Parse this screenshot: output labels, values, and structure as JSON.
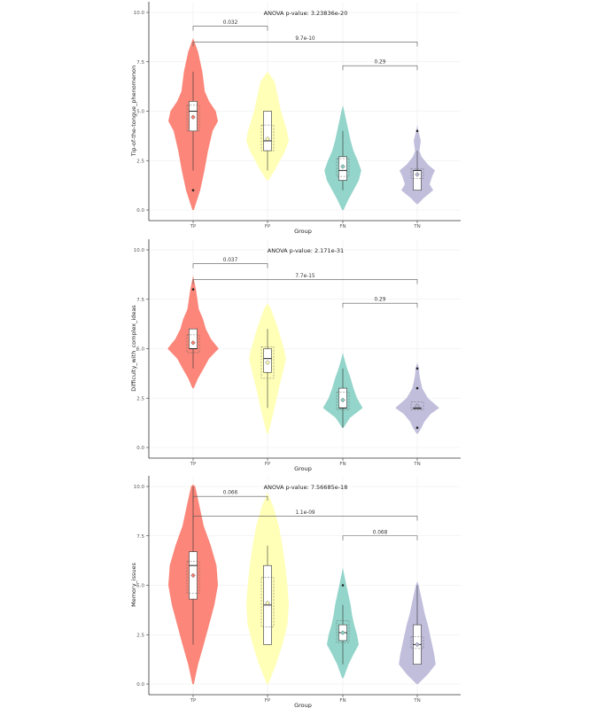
{
  "chart_data": [
    {
      "type": "violin",
      "title": "ANOVA p-value: 3.23836e-20",
      "xlabel": "Group",
      "ylabel": "Tip-of-the-tongue_phenomenon",
      "categories": [
        "TP",
        "FP",
        "FN",
        "TN"
      ],
      "yticks": [
        "0.0",
        "2.5",
        "5.0",
        "7.5",
        "10.0"
      ],
      "ylim": [
        0,
        10
      ],
      "grid": true,
      "groups": [
        {
          "name": "TP",
          "color": "#fb8072",
          "density": [
            [
              0,
              0.02
            ],
            [
              1,
              0.2
            ],
            [
              2,
              0.32
            ],
            [
              3,
              0.42
            ],
            [
              4,
              0.55
            ],
            [
              4.5,
              0.7
            ],
            [
              5,
              0.64
            ],
            [
              5.5,
              0.45
            ],
            [
              6,
              0.33
            ],
            [
              7,
              0.26
            ],
            [
              8,
              0.14
            ],
            [
              8.5,
              0.04
            ],
            [
              8.7,
              0
            ]
          ],
          "ymin": 0,
          "ymax": 8.7,
          "box": {
            "q1": 4,
            "median": 5,
            "q3": 5.5,
            "lo": 2,
            "hi": 7
          },
          "mean": 4.7,
          "ci": [
            4.0,
            5.3
          ],
          "outliers": [
            1
          ]
        },
        {
          "name": "FP",
          "color": "#ffffb3",
          "density": [
            [
              1.5,
              0.02
            ],
            [
              2,
              0.2
            ],
            [
              3,
              0.5
            ],
            [
              3.5,
              0.6
            ],
            [
              4,
              0.55
            ],
            [
              5,
              0.38
            ],
            [
              6,
              0.26
            ],
            [
              6.5,
              0.2
            ],
            [
              6.8,
              0.08
            ],
            [
              7,
              0
            ]
          ],
          "ymin": 1.5,
          "ymax": 7,
          "box": {
            "q1": 3,
            "median": 3.5,
            "q3": 5,
            "lo": 2,
            "hi": 5
          },
          "mean": 3.6,
          "ci": [
            3.0,
            4.3
          ],
          "outliers": []
        },
        {
          "name": "FN",
          "color": "#8dd3c7",
          "density": [
            [
              0,
              0.02
            ],
            [
              0.5,
              0.15
            ],
            [
              1,
              0.3
            ],
            [
              1.5,
              0.45
            ],
            [
              2,
              0.52
            ],
            [
              2.5,
              0.42
            ],
            [
              3,
              0.3
            ],
            [
              3.5,
              0.22
            ],
            [
              4,
              0.16
            ],
            [
              4.5,
              0.1
            ],
            [
              5,
              0.04
            ],
            [
              5.3,
              0
            ]
          ],
          "ymin": 0,
          "ymax": 5.3,
          "box": {
            "q1": 1.5,
            "median": 2,
            "q3": 2.7,
            "lo": 1,
            "hi": 4
          },
          "mean": 2.2,
          "ci": [
            1.7,
            2.6
          ],
          "outliers": []
        },
        {
          "name": "TN",
          "color": "#bebada",
          "density": [
            [
              0.3,
              0.02
            ],
            [
              0.6,
              0.18
            ],
            [
              1,
              0.45
            ],
            [
              1.3,
              0.35
            ],
            [
              1.7,
              0.42
            ],
            [
              2,
              0.5
            ],
            [
              2.3,
              0.3
            ],
            [
              2.7,
              0.12
            ],
            [
              3,
              0.06
            ],
            [
              3.5,
              0.1
            ],
            [
              4,
              0.03
            ],
            [
              4.3,
              0
            ]
          ],
          "ymin": 0.3,
          "ymax": 4.3,
          "box": {
            "q1": 1,
            "median": 2,
            "q3": 2,
            "lo": 1,
            "hi": 3
          },
          "mean": 1.8,
          "ci": [
            1.6,
            2.1
          ],
          "outliers": [
            4
          ]
        }
      ],
      "brackets": [
        {
          "from": "TP",
          "to": "FP",
          "y": 9.3,
          "label": "0.032"
        },
        {
          "from": "TP",
          "to": "TN",
          "y": 8.5,
          "label": "9.7e-10"
        },
        {
          "from": "FN",
          "to": "TN",
          "y": 7.3,
          "label": "0.29"
        }
      ]
    },
    {
      "type": "violin",
      "title": "ANOVA p-value: 2.171e-31",
      "xlabel": "Group",
      "ylabel": "Difficulty_with_complex_ideas",
      "categories": [
        "TP",
        "FP",
        "FN",
        "TN"
      ],
      "yticks": [
        "0.0",
        "2.5",
        "5.0",
        "7.5",
        "10.0"
      ],
      "ylim": [
        0,
        10
      ],
      "grid": true,
      "groups": [
        {
          "name": "TP",
          "color": "#fb8072",
          "density": [
            [
              3,
              0.02
            ],
            [
              3.5,
              0.14
            ],
            [
              4,
              0.3
            ],
            [
              4.5,
              0.45
            ],
            [
              5,
              0.72
            ],
            [
              5.5,
              0.5
            ],
            [
              6,
              0.36
            ],
            [
              6.5,
              0.28
            ],
            [
              7,
              0.16
            ],
            [
              7.5,
              0.12
            ],
            [
              8,
              0.08
            ],
            [
              8.5,
              0.02
            ],
            [
              8.7,
              0
            ]
          ],
          "ymin": 3,
          "ymax": 8.7,
          "box": {
            "q1": 5,
            "median": 5,
            "q3": 6,
            "lo": 4,
            "hi": 6
          },
          "mean": 5.3,
          "ci": [
            4.8,
            5.7
          ],
          "outliers": [
            8
          ]
        },
        {
          "name": "FP",
          "color": "#ffffb3",
          "density": [
            [
              0.7,
              0.02
            ],
            [
              1,
              0.06
            ],
            [
              2,
              0.2
            ],
            [
              3,
              0.32
            ],
            [
              4,
              0.46
            ],
            [
              4.5,
              0.52
            ],
            [
              5,
              0.46
            ],
            [
              6,
              0.3
            ],
            [
              7,
              0.1
            ],
            [
              7.3,
              0
            ]
          ],
          "ymin": 0.7,
          "ymax": 7.3,
          "box": {
            "q1": 3.8,
            "median": 4.5,
            "q3": 5,
            "lo": 2,
            "hi": 6
          },
          "mean": 4.3,
          "ci": [
            3.5,
            5.1
          ],
          "outliers": []
        },
        {
          "name": "FN",
          "color": "#8dd3c7",
          "density": [
            [
              1,
              0.02
            ],
            [
              1.5,
              0.2
            ],
            [
              2,
              0.56
            ],
            [
              2.5,
              0.4
            ],
            [
              3,
              0.3
            ],
            [
              3.5,
              0.22
            ],
            [
              4,
              0.12
            ],
            [
              4.5,
              0.04
            ],
            [
              4.8,
              0
            ]
          ],
          "ymin": 1,
          "ymax": 4.8,
          "box": {
            "q1": 2,
            "median": 2,
            "q3": 3,
            "lo": 1,
            "hi": 4
          },
          "mean": 2.4,
          "ci": [
            1.9,
            2.8
          ],
          "outliers": []
        },
        {
          "name": "TN",
          "color": "#bebada",
          "density": [
            [
              0.7,
              0.02
            ],
            [
              1,
              0.12
            ],
            [
              1.3,
              0.2
            ],
            [
              1.7,
              0.38
            ],
            [
              2,
              0.62
            ],
            [
              2.5,
              0.3
            ],
            [
              3,
              0.14
            ],
            [
              3.3,
              0.1
            ],
            [
              3.7,
              0.06
            ],
            [
              4,
              0.05
            ],
            [
              4.3,
              0
            ]
          ],
          "ymin": 0.7,
          "ymax": 4.3,
          "box": {
            "q1": 2,
            "median": 2,
            "q3": 2,
            "lo": 2,
            "hi": 2
          },
          "mean": 2.1,
          "ci": [
            1.9,
            2.3
          ],
          "outliers": [
            1,
            3,
            4
          ]
        }
      ],
      "brackets": [
        {
          "from": "TP",
          "to": "FP",
          "y": 9.3,
          "label": "0.037"
        },
        {
          "from": "TP",
          "to": "TN",
          "y": 8.5,
          "label": "7.7e-15"
        },
        {
          "from": "FN",
          "to": "TN",
          "y": 7.3,
          "label": "0.29"
        }
      ]
    },
    {
      "type": "violin",
      "title": "ANOVA p-value: 7.56685e-18",
      "xlabel": "Group",
      "ylabel": "Memory_issues",
      "categories": [
        "TP",
        "FP",
        "FN",
        "TN"
      ],
      "yticks": [
        "0.0",
        "2.5",
        "5.0",
        "7.5",
        "10.0"
      ],
      "ylim": [
        0,
        10
      ],
      "grid": true,
      "groups": [
        {
          "name": "TP",
          "color": "#fb8072",
          "density": [
            [
              0,
              0.02
            ],
            [
              1,
              0.14
            ],
            [
              2,
              0.3
            ],
            [
              3,
              0.45
            ],
            [
              4,
              0.6
            ],
            [
              5,
              0.7
            ],
            [
              6,
              0.66
            ],
            [
              7,
              0.5
            ],
            [
              8,
              0.3
            ],
            [
              9,
              0.18
            ],
            [
              10,
              0.06
            ],
            [
              10.1,
              0
            ]
          ],
          "ymin": 0,
          "ymax": 10.1,
          "box": {
            "q1": 4.3,
            "median": 6,
            "q3": 6.7,
            "lo": 2,
            "hi": 10
          },
          "mean": 5.5,
          "ci": [
            4.6,
            6.2
          ],
          "outliers": []
        },
        {
          "name": "FP",
          "color": "#ffffb3",
          "density": [
            [
              0,
              0.02
            ],
            [
              1,
              0.24
            ],
            [
              2,
              0.42
            ],
            [
              3,
              0.56
            ],
            [
              4,
              0.6
            ],
            [
              5,
              0.56
            ],
            [
              6,
              0.5
            ],
            [
              7,
              0.42
            ],
            [
              8,
              0.32
            ],
            [
              9,
              0.16
            ],
            [
              9.5,
              0.04
            ],
            [
              9.7,
              0
            ]
          ],
          "ymin": 0,
          "ymax": 9.7,
          "box": {
            "q1": 2,
            "median": 4,
            "q3": 6,
            "lo": 2,
            "hi": 7
          },
          "mean": 4.1,
          "ci": [
            2.9,
            5.4
          ],
          "outliers": []
        },
        {
          "name": "FN",
          "color": "#8dd3c7",
          "density": [
            [
              0.3,
              0.02
            ],
            [
              1,
              0.16
            ],
            [
              1.5,
              0.3
            ],
            [
              2,
              0.45
            ],
            [
              2.5,
              0.4
            ],
            [
              3,
              0.32
            ],
            [
              3.5,
              0.26
            ],
            [
              4,
              0.22
            ],
            [
              4.5,
              0.16
            ],
            [
              5,
              0.1
            ],
            [
              5.7,
              0.02
            ],
            [
              5.9,
              0
            ]
          ],
          "ymin": 0.3,
          "ymax": 5.9,
          "box": {
            "q1": 2.2,
            "median": 2.6,
            "q3": 3,
            "lo": 1,
            "hi": 4
          },
          "mean": 2.6,
          "ci": [
            2.1,
            3.2
          ],
          "outliers": [
            5
          ]
        },
        {
          "name": "TN",
          "color": "#bebada",
          "density": [
            [
              0,
              0.02
            ],
            [
              0.5,
              0.3
            ],
            [
              1,
              0.52
            ],
            [
              1.5,
              0.48
            ],
            [
              2,
              0.42
            ],
            [
              2.5,
              0.36
            ],
            [
              3,
              0.3
            ],
            [
              3.5,
              0.22
            ],
            [
              4,
              0.16
            ],
            [
              4.5,
              0.1
            ],
            [
              5,
              0.04
            ],
            [
              5.2,
              0
            ]
          ],
          "ymin": 0,
          "ymax": 5.2,
          "box": {
            "q1": 1,
            "median": 2,
            "q3": 3,
            "lo": 1,
            "hi": 5
          },
          "mean": 2.0,
          "ci": [
            1.8,
            2.4
          ],
          "outliers": []
        }
      ],
      "brackets": [
        {
          "from": "TP",
          "to": "FP",
          "y": 9.5,
          "label": "0.066"
        },
        {
          "from": "TP",
          "to": "TN",
          "y": 8.5,
          "label": "1.1e-09"
        },
        {
          "from": "FN",
          "to": "TN",
          "y": 7.5,
          "label": "0.068"
        }
      ]
    }
  ]
}
